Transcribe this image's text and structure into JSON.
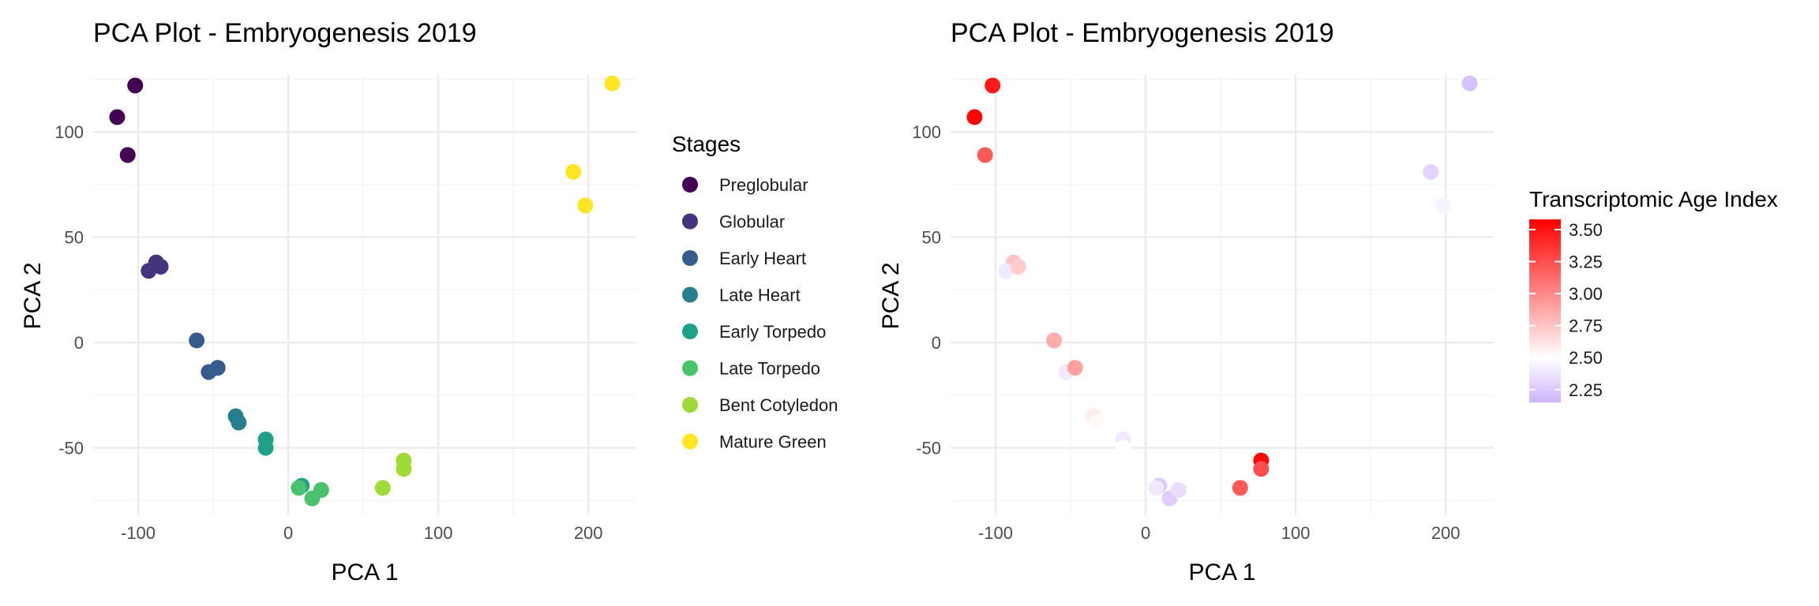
{
  "chart_data": [
    {
      "type": "scatter",
      "title": "PCA Plot - Embryogenesis 2019",
      "xlabel": "PCA 1",
      "ylabel": "PCA 2",
      "xlim": [
        -130,
        232
      ],
      "ylim": [
        -82,
        127
      ],
      "xticks": [
        -100,
        0,
        100,
        200
      ],
      "yticks": [
        -50,
        0,
        50,
        100
      ],
      "xtick_labels": [
        "-100",
        "0",
        "100",
        "200"
      ],
      "ytick_labels": [
        "-50",
        "0",
        "50",
        "100"
      ],
      "grid": true,
      "legend": {
        "title": "Stages",
        "position": "right"
      },
      "series": [
        {
          "name": "Preglobular",
          "color": "#440154",
          "points": [
            [
              -102,
              122
            ],
            [
              -114,
              107
            ],
            [
              -107,
              89
            ]
          ]
        },
        {
          "name": "Globular",
          "color": "#46337e",
          "points": [
            [
              -88,
              38
            ],
            [
              -93,
              34
            ],
            [
              -85,
              36
            ]
          ]
        },
        {
          "name": "Early Heart",
          "color": "#365c8d",
          "points": [
            [
              -61,
              1
            ],
            [
              -53,
              -14
            ],
            [
              -47,
              -12
            ]
          ]
        },
        {
          "name": "Late Heart",
          "color": "#277f8e",
          "points": [
            [
              -35,
              -35
            ],
            [
              -33,
              -38
            ]
          ]
        },
        {
          "name": "Early Torpedo",
          "color": "#1fa187",
          "points": [
            [
              -15,
              -46
            ],
            [
              -15,
              -50
            ],
            [
              9,
              -68
            ]
          ]
        },
        {
          "name": "Late Torpedo",
          "color": "#4ac16d",
          "points": [
            [
              7,
              -69
            ],
            [
              16,
              -74
            ],
            [
              22,
              -70
            ]
          ]
        },
        {
          "name": "Bent Cotyledon",
          "color": "#a0da39",
          "points": [
            [
              63,
              -69
            ],
            [
              77,
              -56
            ],
            [
              77,
              -60
            ]
          ]
        },
        {
          "name": "Mature Green",
          "color": "#fde725",
          "points": [
            [
              216,
              123
            ],
            [
              190,
              81
            ],
            [
              198,
              65
            ]
          ]
        }
      ]
    },
    {
      "type": "scatter",
      "title": "PCA Plot - Embryogenesis 2019",
      "xlabel": "PCA 1",
      "ylabel": "PCA 2",
      "xlim": [
        -130,
        232
      ],
      "ylim": [
        -82,
        127
      ],
      "xticks": [
        -100,
        0,
        100,
        200
      ],
      "yticks": [
        -50,
        0,
        50,
        100
      ],
      "xtick_labels": [
        "-100",
        "0",
        "100",
        "200"
      ],
      "ytick_labels": [
        "-50",
        "0",
        "50",
        "100"
      ],
      "grid": true,
      "legend": {
        "title": "Transcriptomic Age Index",
        "position": "right",
        "type": "colorbar",
        "range": [
          2.15,
          3.58
        ],
        "ticks": [
          3.5,
          3.25,
          3.0,
          2.75,
          2.5,
          2.25
        ],
        "tick_labels": [
          "3.50",
          "3.25",
          "3.00",
          "2.75",
          "2.50",
          "2.25"
        ],
        "low_color": "#ccb3ff",
        "mid_color": "#ffffff",
        "high_color": "#ff0000",
        "midpoint": 2.5
      },
      "points": [
        {
          "x": -102,
          "y": 122,
          "value": 3.48
        },
        {
          "x": -114,
          "y": 107,
          "value": 3.55
        },
        {
          "x": -107,
          "y": 89,
          "value": 3.2
        },
        {
          "x": -88,
          "y": 38,
          "value": 2.75
        },
        {
          "x": -93,
          "y": 34,
          "value": 2.4
        },
        {
          "x": -85,
          "y": 36,
          "value": 2.72
        },
        {
          "x": -61,
          "y": 1,
          "value": 2.85
        },
        {
          "x": -53,
          "y": -14,
          "value": 2.4
        },
        {
          "x": -47,
          "y": -12,
          "value": 2.9
        },
        {
          "x": -35,
          "y": -35,
          "value": 2.58
        },
        {
          "x": -33,
          "y": -38,
          "value": 2.52
        },
        {
          "x": -15,
          "y": -46,
          "value": 2.4
        },
        {
          "x": -15,
          "y": -50,
          "value": 2.5
        },
        {
          "x": 9,
          "y": -68,
          "value": 2.25
        },
        {
          "x": 7,
          "y": -69,
          "value": 2.4
        },
        {
          "x": 16,
          "y": -74,
          "value": 2.28
        },
        {
          "x": 22,
          "y": -70,
          "value": 2.35
        },
        {
          "x": 63,
          "y": -69,
          "value": 3.2
        },
        {
          "x": 77,
          "y": -56,
          "value": 3.55
        },
        {
          "x": 77,
          "y": -60,
          "value": 3.25
        },
        {
          "x": 216,
          "y": 123,
          "value": 2.22
        },
        {
          "x": 190,
          "y": 81,
          "value": 2.3
        },
        {
          "x": 198,
          "y": 65,
          "value": 2.45
        }
      ]
    }
  ]
}
